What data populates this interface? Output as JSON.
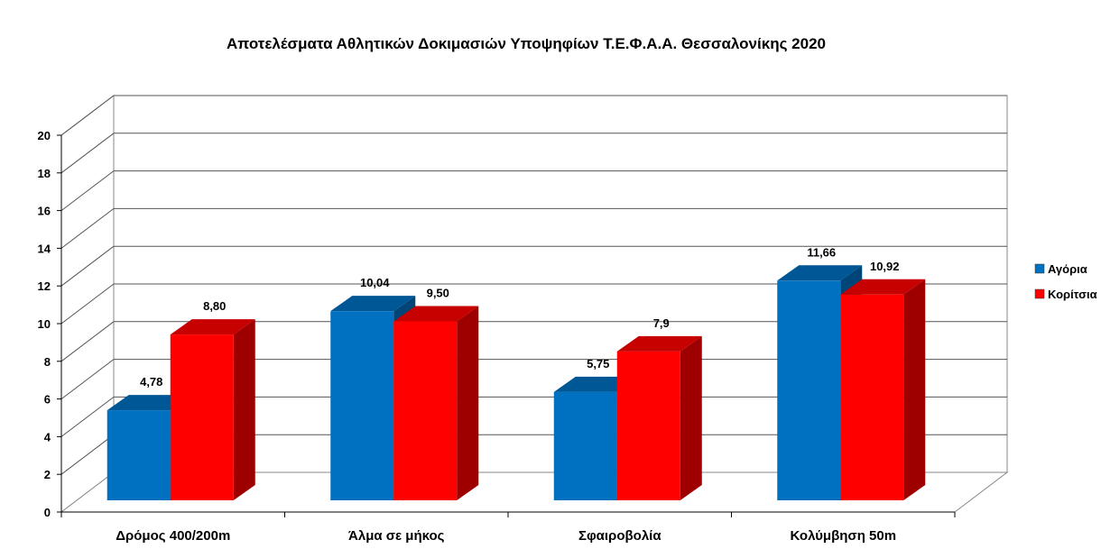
{
  "chart_data": {
    "type": "bar",
    "title": "Αποτελέσματα Αθλητικών Δοκιμασιών Υποψηφίων Τ.Ε.Φ.Α.Α. Θεσσαλονίκης 2020",
    "categories": [
      "Δρόμος 400/200m",
      "Άλμα σε μήκος",
      "Σφαιροβολία",
      "Κολύμβηση 50m"
    ],
    "series": [
      {
        "name": "Αγόρια",
        "values": [
          4.78,
          10.04,
          5.75,
          11.66
        ],
        "labels": [
          "4,78",
          "10,04",
          "5,75",
          "11,66"
        ],
        "color": "#0070C0"
      },
      {
        "name": "Κορίτσια",
        "values": [
          8.8,
          9.5,
          7.9,
          10.92
        ],
        "labels": [
          "8,80",
          "9,50",
          "7,9",
          "10,92"
        ],
        "color": "#FF0000"
      }
    ],
    "ylim": [
      0,
      20
    ],
    "yticks": [
      "0",
      "2",
      "4",
      "6",
      "8",
      "10",
      "12",
      "14",
      "16",
      "18",
      "20"
    ],
    "xlabel": "",
    "ylabel": "",
    "grid": true,
    "legend": "right",
    "style": "3d-clustered-bar"
  }
}
